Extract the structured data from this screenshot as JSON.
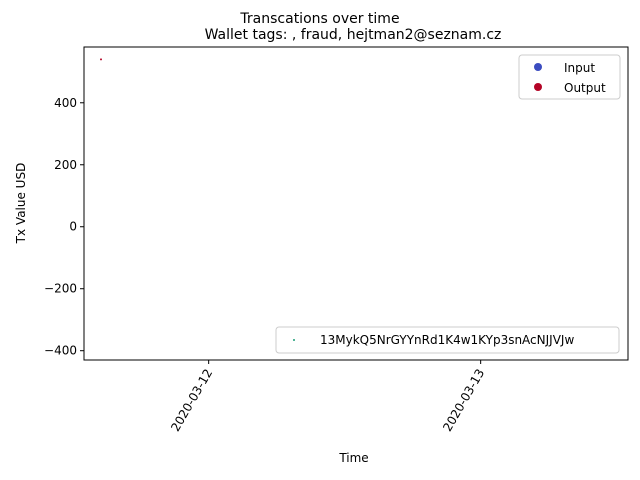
{
  "chart_data": {
    "type": "scatter",
    "suptitle": "Transcations over time",
    "title": "Wallet tags: , fraud, hejtman2@seznam.cz",
    "xlabel": "Time",
    "ylabel": "Tx Value USD",
    "x_ticks": [
      "2020-03-12",
      "2020-03-13"
    ],
    "y_ticks": [
      -400,
      -200,
      0,
      200,
      400
    ],
    "xlim": [
      "2020-03-11T13:00",
      "2020-03-13T13:00"
    ],
    "ylim": [
      -430,
      580
    ],
    "grid": false,
    "series": [
      {
        "name": "Output",
        "color": "#b40426",
        "points": [
          {
            "x": "2020-03-11T14:30",
            "y": 540
          }
        ]
      }
    ],
    "legends": [
      {
        "placement": "upper right",
        "entries": [
          {
            "label": "Input",
            "color": "#3b4cc0"
          },
          {
            "label": "Output",
            "color": "#b40426"
          }
        ]
      },
      {
        "placement": "lower right",
        "entries": [
          {
            "label": "13MykQ5NrGYYnRd1K4w1KYp3snAcNJJVJw",
            "color": "#1a9e76"
          }
        ]
      }
    ]
  }
}
